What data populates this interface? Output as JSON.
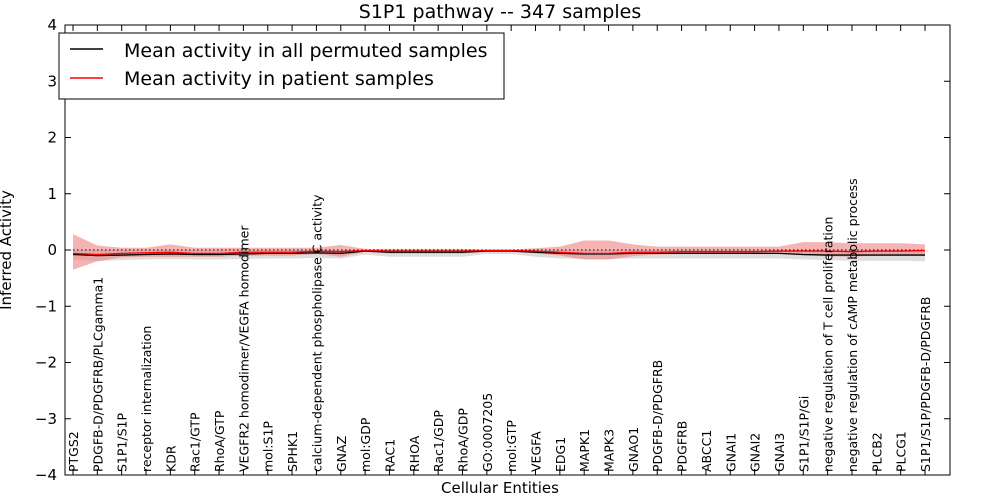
{
  "chart_data": {
    "type": "line",
    "title": "S1P1 pathway -- 347 samples",
    "xlabel": "Cellular Entities",
    "ylabel": "Inferred Activity",
    "ylim": [
      -4,
      4
    ],
    "yticks": [
      4,
      3,
      2,
      1,
      0,
      -1,
      -2,
      -3,
      -4
    ],
    "ytick_labels": [
      "4",
      "3",
      "2",
      "1",
      "0",
      "−1",
      "−2",
      "−3",
      "−4"
    ],
    "legend_position": "top-left",
    "categories": [
      "PTGS2",
      "PDGFB-D/PDGFRB/PLCgamma1",
      "S1P1/S1P",
      "receptor internalization",
      "KDR",
      "Rac1/GTP",
      "RhoA/GTP",
      "VEGFR2 homodimer/VEGFA homodimer",
      "mol:S1P",
      "SPHK1",
      "calcium-dependent phospholipase C activity",
      "GNAZ",
      "mol:GDP",
      "RAC1",
      "RHOA",
      "Rac1/GDP",
      "RhoA/GDP",
      "GO:0007205",
      "mol:GTP",
      "VEGFA",
      "EDG1",
      "MAPK1",
      "MAPK3",
      "GNAO1",
      "PDGFB-D/PDGFRB",
      "PDGFRB",
      "ABCC1",
      "GNAI1",
      "GNAI2",
      "GNAI3",
      "S1P1/S1P/Gi",
      "negative regulation of T cell proliferation",
      "negative regulation of cAMP metabolic process",
      "PLCB2",
      "PLCG1",
      "S1P1/S1P/PDGFB-D/PDGFRB"
    ],
    "series": [
      {
        "name": "Mean activity in all permuted samples",
        "color": "#000000",
        "band_color": "#d3d3d3",
        "values": [
          -0.08,
          -0.1,
          -0.09,
          -0.08,
          -0.07,
          -0.08,
          -0.08,
          -0.07,
          -0.06,
          -0.06,
          -0.05,
          -0.06,
          -0.02,
          -0.04,
          -0.04,
          -0.04,
          -0.04,
          -0.02,
          -0.02,
          -0.04,
          -0.06,
          -0.07,
          -0.07,
          -0.06,
          -0.06,
          -0.06,
          -0.06,
          -0.06,
          -0.06,
          -0.06,
          -0.08,
          -0.09,
          -0.09,
          -0.09,
          -0.09,
          -0.09
        ],
        "lower": [
          -0.17,
          -0.2,
          -0.18,
          -0.17,
          -0.16,
          -0.17,
          -0.17,
          -0.16,
          -0.15,
          -0.15,
          -0.14,
          -0.15,
          -0.08,
          -0.12,
          -0.12,
          -0.12,
          -0.12,
          -0.07,
          -0.07,
          -0.12,
          -0.15,
          -0.16,
          -0.16,
          -0.15,
          -0.15,
          -0.15,
          -0.15,
          -0.15,
          -0.15,
          -0.15,
          -0.17,
          -0.18,
          -0.19,
          -0.19,
          -0.19,
          -0.2
        ],
        "upper": [
          0.0,
          0.0,
          0.0,
          0.0,
          0.0,
          0.0,
          0.0,
          0.0,
          0.0,
          0.0,
          0.0,
          0.0,
          0.0,
          0.0,
          0.0,
          0.0,
          0.0,
          0.0,
          0.0,
          0.0,
          0.0,
          0.0,
          0.0,
          0.0,
          0.0,
          0.0,
          0.0,
          0.0,
          0.0,
          0.0,
          0.0,
          0.0,
          0.0,
          0.0,
          0.0,
          0.0
        ]
      },
      {
        "name": "Mean activity in patient samples",
        "color": "#ff0000",
        "band_color": "#f08080",
        "values": [
          -0.06,
          -0.08,
          -0.06,
          -0.05,
          -0.04,
          -0.06,
          -0.06,
          -0.04,
          -0.04,
          -0.04,
          -0.02,
          -0.03,
          -0.01,
          -0.02,
          -0.02,
          -0.02,
          -0.02,
          -0.01,
          -0.01,
          -0.02,
          -0.04,
          -0.06,
          -0.06,
          -0.04,
          -0.04,
          -0.03,
          -0.03,
          -0.03,
          -0.03,
          -0.02,
          -0.02,
          -0.02,
          -0.03,
          -0.02,
          -0.02,
          -0.01
        ],
        "lower": [
          -0.35,
          -0.2,
          -0.13,
          -0.12,
          -0.12,
          -0.12,
          -0.12,
          -0.1,
          -0.1,
          -0.1,
          -0.07,
          -0.12,
          -0.03,
          -0.06,
          -0.06,
          -0.06,
          -0.06,
          -0.03,
          -0.03,
          -0.06,
          -0.1,
          -0.17,
          -0.17,
          -0.11,
          -0.08,
          -0.07,
          -0.07,
          -0.07,
          -0.07,
          -0.06,
          -0.1,
          -0.11,
          -0.12,
          -0.1,
          -0.1,
          -0.1
        ],
        "upper": [
          0.28,
          0.08,
          0.04,
          0.04,
          0.1,
          0.04,
          0.04,
          0.04,
          0.04,
          0.04,
          0.04,
          0.09,
          0.02,
          0.02,
          0.02,
          0.02,
          0.02,
          0.01,
          0.01,
          0.03,
          0.06,
          0.17,
          0.17,
          0.1,
          0.06,
          0.06,
          0.06,
          0.06,
          0.06,
          0.06,
          0.14,
          0.14,
          0.12,
          0.12,
          0.12,
          0.1
        ]
      }
    ],
    "reference_line": {
      "y": 0.0,
      "style": "dotted"
    }
  }
}
